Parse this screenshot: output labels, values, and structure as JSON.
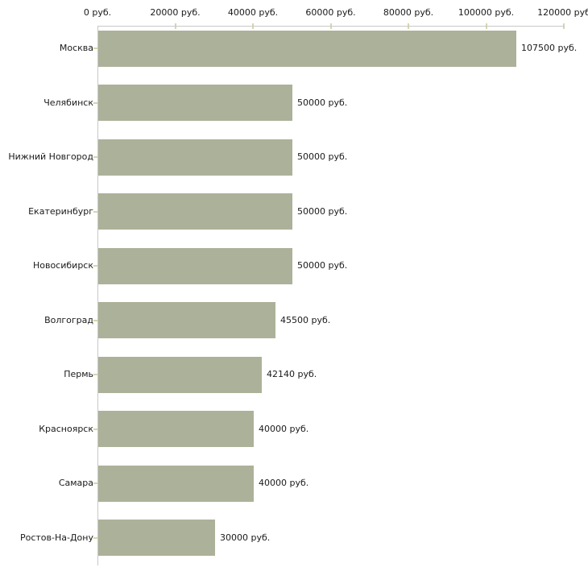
{
  "chart_data": {
    "type": "bar",
    "orientation": "horizontal",
    "title": "",
    "categories": [
      "Москва",
      "Челябинск",
      "Нижний Новгород",
      "Екатеринбург",
      "Новосибирск",
      "Волгоград",
      "Пермь",
      "Красноярск",
      "Самара",
      "Ростов-На-Дону"
    ],
    "values": [
      107500,
      50000,
      50000,
      50000,
      50000,
      45500,
      42140,
      40000,
      40000,
      30000
    ],
    "value_labels": [
      "107500 руб.",
      "50000 руб.",
      "50000 руб.",
      "50000 руб.",
      "50000 руб.",
      "45500 руб.",
      "42140 руб.",
      "40000 руб.",
      "40000 руб.",
      "30000 руб."
    ],
    "x_axis": {
      "position": "top",
      "range": [
        0,
        120000
      ],
      "ticks": [
        0,
        20000,
        40000,
        60000,
        80000,
        100000,
        120000
      ],
      "tick_labels": [
        "0 руб.",
        "20000 руб.",
        "40000 руб.",
        "60000 руб.",
        "80000 руб.",
        "100000 руб.",
        "120000 руб"
      ]
    },
    "unit": "руб.",
    "legend": "none",
    "grid": false,
    "colors": {
      "bar": "#acb199",
      "axis_line": "#c8c8c8",
      "tick_mark": "#d8d5ab",
      "text": "#1a1a1a",
      "background": "#ffffff"
    }
  }
}
